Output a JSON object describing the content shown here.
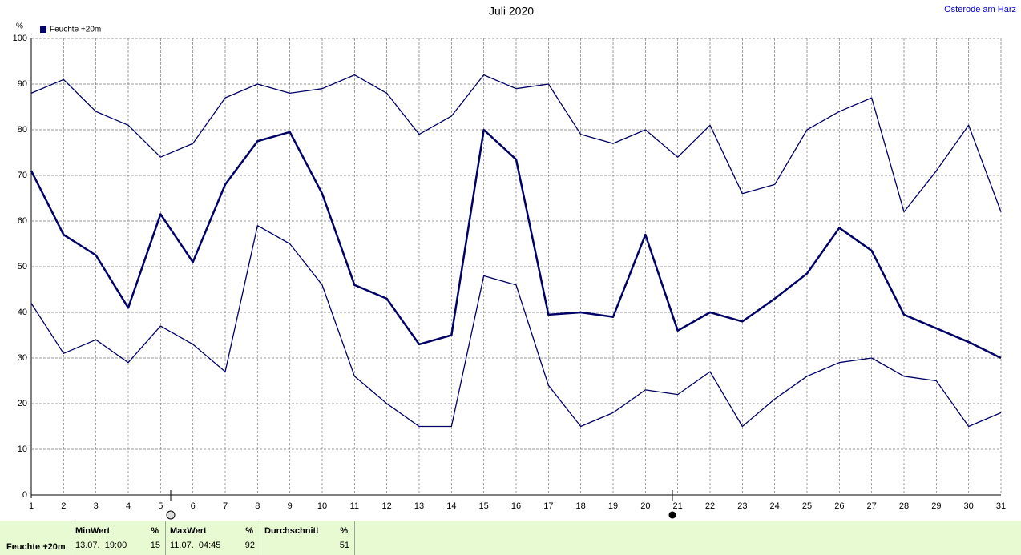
{
  "chart_data": {
    "type": "line",
    "title": "Juli 2020",
    "location": "Osterode am Harz",
    "ylabel": "%",
    "x": [
      1,
      2,
      3,
      4,
      5,
      6,
      7,
      8,
      9,
      10,
      11,
      12,
      13,
      14,
      15,
      16,
      17,
      18,
      19,
      20,
      21,
      22,
      23,
      24,
      25,
      26,
      27,
      28,
      29,
      30,
      31
    ],
    "xlim": [
      1,
      31
    ],
    "xticks": [
      1,
      2,
      3,
      4,
      5,
      6,
      7,
      8,
      9,
      10,
      11,
      12,
      13,
      14,
      15,
      16,
      17,
      18,
      19,
      20,
      21,
      22,
      23,
      24,
      25,
      26,
      27,
      28,
      29,
      30,
      31
    ],
    "ylim": [
      0,
      100
    ],
    "yticks": [
      0,
      10,
      20,
      30,
      40,
      50,
      60,
      70,
      80,
      90,
      100
    ],
    "grid": true,
    "legend": "top-left",
    "series": [
      {
        "name": "Feuchte +20m",
        "color": "#000066",
        "line_width": 2.5,
        "values": [
          71,
          57,
          52.5,
          41,
          61.5,
          51,
          68,
          77.5,
          79.5,
          66,
          46,
          43,
          33,
          35,
          80,
          73.5,
          39.5,
          40,
          39,
          57,
          36,
          40,
          38,
          43,
          48.5,
          58.5,
          53.5,
          39.5,
          36.5,
          33.5,
          30
        ]
      },
      {
        "color": "#000066",
        "line_width": 1.3,
        "values": [
          88,
          91,
          84,
          81,
          74,
          77,
          87,
          90,
          88,
          89,
          92,
          88,
          79,
          83,
          92,
          89,
          90,
          79,
          77,
          80,
          74,
          81,
          66,
          68,
          80,
          84,
          87,
          62,
          71,
          81,
          62
        ]
      },
      {
        "color": "#000066",
        "line_width": 1.3,
        "values": [
          42,
          31,
          34,
          29,
          37,
          33,
          27,
          59,
          55,
          46,
          26,
          20,
          15,
          15,
          48,
          46,
          24,
          15,
          18,
          23,
          22,
          27,
          15,
          21,
          26,
          29,
          30,
          26,
          25,
          15,
          18
        ]
      }
    ]
  },
  "summary": {
    "label": "Feuchte +20m",
    "columns": [
      {
        "title": "MinWert",
        "unit": "%",
        "time": "13.07.  19:00",
        "value": 15
      },
      {
        "title": "MaxWert",
        "unit": "%",
        "time": "11.07.  04:45",
        "value": 92
      },
      {
        "title": "Durchschnitt",
        "unit": "%",
        "value": 51
      }
    ]
  }
}
